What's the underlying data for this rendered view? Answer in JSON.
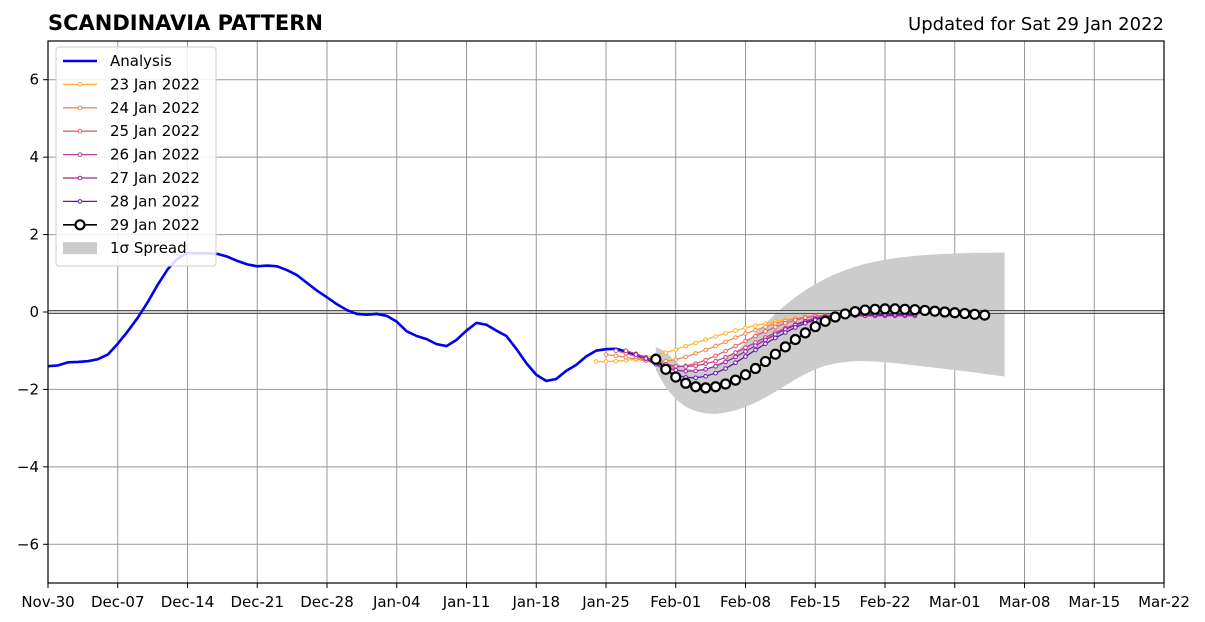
{
  "chart_data": {
    "type": "line",
    "title": "SCANDINAVIA PATTERN",
    "subtitle": "Updated for Sat 29 Jan 2022",
    "xlabel": "",
    "ylabel": "",
    "xlim": [
      "2021-11-30",
      "2022-03-22"
    ],
    "ylim": [
      -7,
      7
    ],
    "grid": true,
    "legend_position": "top-left",
    "x_ticks": [
      "Nov-30",
      "Dec-07",
      "Dec-14",
      "Dec-21",
      "Dec-28",
      "Jan-04",
      "Jan-11",
      "Jan-18",
      "Jan-25",
      "Feb-01",
      "Feb-08",
      "Feb-15",
      "Feb-22",
      "Mar-01",
      "Mar-08",
      "Mar-15",
      "Mar-22"
    ],
    "x_tick_dates": [
      "2021-11-30",
      "2021-12-07",
      "2021-12-14",
      "2021-12-21",
      "2021-12-28",
      "2022-01-04",
      "2022-01-11",
      "2022-01-18",
      "2022-01-25",
      "2022-02-01",
      "2022-02-08",
      "2022-02-15",
      "2022-02-22",
      "2022-03-01",
      "2022-03-08",
      "2022-03-15",
      "2022-03-22"
    ],
    "y_ticks": [
      "−6",
      "−4",
      "−2",
      "0",
      "2",
      "4",
      "6"
    ],
    "y_tick_values": [
      -6,
      -4,
      -2,
      0,
      2,
      4,
      6
    ],
    "analysis": {
      "name": "Analysis",
      "color": "#0000ee",
      "start": "2021-11-30",
      "values": [
        -1.4,
        -1.38,
        -1.3,
        -1.29,
        -1.27,
        -1.22,
        -1.1,
        -0.82,
        -0.5,
        -0.15,
        0.25,
        0.7,
        1.1,
        1.38,
        1.52,
        1.52,
        1.52,
        1.5,
        1.43,
        1.32,
        1.23,
        1.18,
        1.2,
        1.18,
        1.08,
        0.95,
        0.75,
        0.55,
        0.38,
        0.2,
        0.05,
        -0.05,
        -0.07,
        -0.05,
        -0.1,
        -0.25,
        -0.5,
        -0.62,
        -0.7,
        -0.83,
        -0.88,
        -0.72,
        -0.48,
        -0.28,
        -0.33,
        -0.48,
        -0.62,
        -0.95,
        -1.32,
        -1.62,
        -1.78,
        -1.73,
        -1.52,
        -1.37,
        -1.15,
        -1.0,
        -0.96,
        -0.95,
        -1.02,
        -1.12,
        -1.18
      ]
    },
    "forecasts": [
      {
        "name": "23 Jan 2022",
        "color": "#ffb530",
        "start": "2022-01-24",
        "values": [
          -1.28,
          -1.28,
          -1.27,
          -1.25,
          -1.22,
          -1.18,
          -1.12,
          -1.05,
          -0.97,
          -0.88,
          -0.8,
          -0.71,
          -0.63,
          -0.55,
          -0.48,
          -0.41,
          -0.35,
          -0.3,
          -0.25,
          -0.2,
          -0.16,
          -0.13,
          -0.11,
          -0.1,
          -0.09,
          -0.08,
          -0.08,
          -0.08,
          -0.08,
          -0.08,
          -0.08,
          -0.08,
          -0.08
        ]
      },
      {
        "name": "24 Jan 2022",
        "color": "#f5884a",
        "start": "2022-01-25",
        "values": [
          -1.1,
          -1.13,
          -1.17,
          -1.22,
          -1.26,
          -1.28,
          -1.27,
          -1.23,
          -1.16,
          -1.07,
          -0.98,
          -0.88,
          -0.77,
          -0.66,
          -0.56,
          -0.47,
          -0.38,
          -0.3,
          -0.23,
          -0.17,
          -0.13,
          -0.1,
          -0.09,
          -0.08,
          -0.08,
          -0.08,
          -0.08,
          -0.08,
          -0.08,
          -0.08,
          -0.08,
          -0.08
        ]
      },
      {
        "name": "25 Jan 2022",
        "color": "#e06070",
        "start": "2022-01-26",
        "values": [
          -1.0,
          -1.07,
          -1.15,
          -1.25,
          -1.34,
          -1.4,
          -1.42,
          -1.39,
          -1.33,
          -1.24,
          -1.13,
          -1.01,
          -0.88,
          -0.75,
          -0.62,
          -0.5,
          -0.39,
          -0.29,
          -0.21,
          -0.15,
          -0.11,
          -0.09,
          -0.09,
          -0.1,
          -0.1,
          -0.1,
          -0.1,
          -0.1,
          -0.1,
          -0.1,
          -0.1
        ]
      },
      {
        "name": "26 Jan 2022",
        "color": "#c2408a",
        "start": "2022-01-27",
        "values": [
          -1.0,
          -1.08,
          -1.17,
          -1.27,
          -1.35,
          -1.4,
          -1.41,
          -1.39,
          -1.34,
          -1.27,
          -1.17,
          -1.05,
          -0.92,
          -0.79,
          -0.66,
          -0.53,
          -0.42,
          -0.32,
          -0.23,
          -0.16,
          -0.11,
          -0.09,
          -0.09,
          -0.1,
          -0.1,
          -0.1,
          -0.1,
          -0.1,
          -0.1,
          -0.1
        ]
      },
      {
        "name": "27 Jan 2022",
        "color": "#9a20a8",
        "start": "2022-01-28",
        "values": [
          -1.1,
          -1.2,
          -1.31,
          -1.42,
          -1.5,
          -1.53,
          -1.52,
          -1.48,
          -1.4,
          -1.29,
          -1.16,
          -1.02,
          -0.87,
          -0.72,
          -0.58,
          -0.45,
          -0.34,
          -0.25,
          -0.18,
          -0.13,
          -0.1,
          -0.09,
          -0.09,
          -0.09,
          -0.09,
          -0.09,
          -0.09,
          -0.09,
          -0.09
        ]
      },
      {
        "name": "28 Jan 2022",
        "color": "#6418a8",
        "start": "2022-01-29",
        "values": [
          -1.2,
          -1.35,
          -1.5,
          -1.62,
          -1.69,
          -1.7,
          -1.66,
          -1.58,
          -1.46,
          -1.31,
          -1.15,
          -0.98,
          -0.82,
          -0.67,
          -0.53,
          -0.4,
          -0.29,
          -0.2,
          -0.13,
          -0.08,
          -0.06,
          -0.05,
          -0.05,
          -0.06,
          -0.06,
          -0.06,
          -0.06,
          -0.06
        ]
      },
      {
        "name": "29 Jan 2022",
        "color": "#000000",
        "start": "2022-01-30",
        "values": [
          -1.22,
          -1.48,
          -1.68,
          -1.84,
          -1.93,
          -1.96,
          -1.93,
          -1.86,
          -1.76,
          -1.62,
          -1.46,
          -1.28,
          -1.09,
          -0.9,
          -0.71,
          -0.54,
          -0.38,
          -0.24,
          -0.13,
          -0.05,
          0.01,
          0.05,
          0.07,
          0.08,
          0.08,
          0.07,
          0.06,
          0.04,
          0.02,
          0.0,
          -0.02,
          -0.04,
          -0.06,
          -0.08
        ]
      }
    ],
    "spread": {
      "name": "1σ Spread",
      "color": "#cccccc",
      "start": "2022-01-30",
      "upper": [
        -0.9,
        -1.02,
        -1.3,
        -1.45,
        -1.5,
        -1.48,
        -1.38,
        -1.22,
        -1.02,
        -0.8,
        -0.55,
        -0.3,
        -0.05,
        0.18,
        0.38,
        0.56,
        0.72,
        0.86,
        0.98,
        1.08,
        1.17,
        1.24,
        1.3,
        1.35,
        1.39,
        1.42,
        1.45,
        1.47,
        1.49,
        1.5,
        1.51,
        1.52,
        1.53,
        1.53,
        1.53,
        1.54
      ],
      "lower": [
        -1.5,
        -1.95,
        -2.25,
        -2.45,
        -2.56,
        -2.62,
        -2.63,
        -2.6,
        -2.54,
        -2.45,
        -2.34,
        -2.21,
        -2.06,
        -1.9,
        -1.74,
        -1.6,
        -1.48,
        -1.39,
        -1.33,
        -1.29,
        -1.27,
        -1.27,
        -1.28,
        -1.3,
        -1.32,
        -1.35,
        -1.38,
        -1.41,
        -1.44,
        -1.47,
        -1.5,
        -1.53,
        -1.56,
        -1.6,
        -1.63,
        -1.67
      ]
    },
    "legend": [
      "Analysis",
      "23 Jan 2022",
      "24 Jan 2022",
      "25 Jan 2022",
      "26 Jan 2022",
      "27 Jan 2022",
      "28 Jan 2022",
      "29 Jan 2022",
      "1σ Spread"
    ]
  }
}
